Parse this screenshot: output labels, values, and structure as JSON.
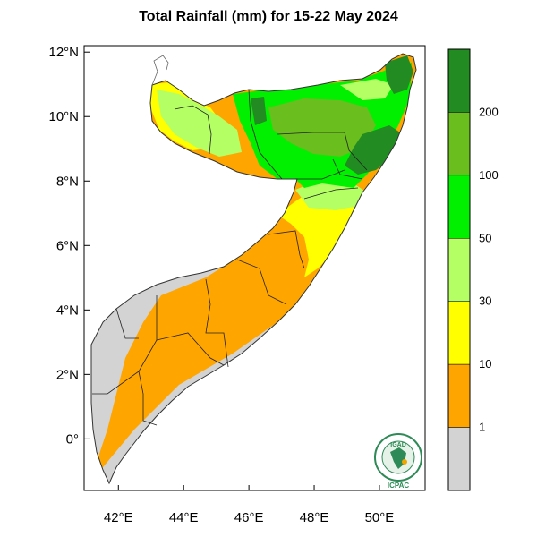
{
  "title": "Total Rainfall (mm) for 15-22 May 2024",
  "map": {
    "lat_labels": [
      "12°N",
      "10°N",
      "8°N",
      "6°N",
      "4°N",
      "2°N",
      "0°"
    ],
    "lon_labels": [
      "42°E",
      "44°E",
      "46°E",
      "48°E",
      "50°E"
    ],
    "lat_values": [
      12,
      10,
      8,
      6,
      4,
      2,
      0
    ],
    "lon_values": [
      42,
      44,
      46,
      48,
      50
    ],
    "lat_range": [
      -1.6,
      12.2
    ],
    "lon_range": [
      40.95,
      51.4
    ]
  },
  "colorbar": {
    "labels": [
      "200",
      "100",
      "50",
      "30",
      "10",
      "1"
    ],
    "colors": [
      "#228b22",
      "#6abe1e",
      "#00f000",
      "#b4ff64",
      "#ffff00",
      "#ffa500",
      "#d3d3d3"
    ]
  },
  "logo": {
    "text_top": "IGAD",
    "text_bottom": "ICPAC",
    "colors": {
      "ring": "#2e8b57",
      "inner": "#ffffff",
      "accent": "#f0a500"
    }
  }
}
